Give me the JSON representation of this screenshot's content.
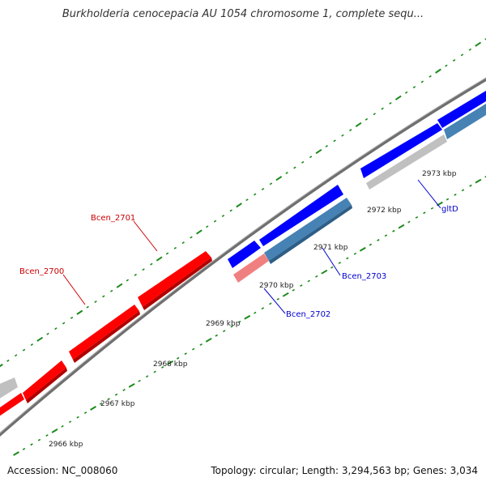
{
  "title": "Burkholderia cenocepacia AU 1054 chromosome 1, complete sequ...",
  "footer": {
    "accession": "Accession: NC_008060",
    "info": "Topology: circular; Length: 3,294,563 bp; Genes: 3,034"
  },
  "colors": {
    "backbone": "#808080",
    "tick": "#1a8a1a",
    "forward_gene": "#ff0000",
    "reverse_gene": "#0000ff",
    "light_red_gene": "#f08080",
    "steel_blue_gene": "#4682b4",
    "other_gene": "#c0c0c0",
    "label_red": "#cc0000",
    "label_blue": "#0000cc"
  },
  "scale_labels": [
    "2966 kbp",
    "2967 kbp",
    "2968 kbp",
    "2969 kbp",
    "2970 kbp",
    "2971 kbp",
    "2972 kbp",
    "2973 kbp"
  ],
  "gene_labels": [
    {
      "name": "Bcen_2700",
      "color": "red"
    },
    {
      "name": "Bcen_2701",
      "color": "red"
    },
    {
      "name": "Bcen_2702",
      "color": "blue"
    },
    {
      "name": "Bcen_2703",
      "color": "blue"
    },
    {
      "name": "gltD",
      "color": "blue"
    }
  ]
}
